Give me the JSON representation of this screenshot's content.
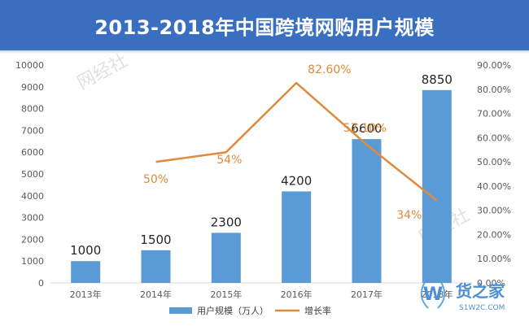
{
  "chart_data": {
    "type": "bar",
    "title": "2013-2018年中国跨境网购用户规模",
    "categories": [
      "2013年",
      "2014年",
      "2015年",
      "2016年",
      "2017年",
      "2018年"
    ],
    "series": [
      {
        "name": "用户规模（万人）",
        "type": "bar",
        "axis": "left",
        "values": [
          1000,
          1500,
          2300,
          4200,
          6600,
          8850
        ],
        "labels": [
          "1000",
          "1500",
          "2300",
          "4200",
          "6600",
          "8850"
        ]
      },
      {
        "name": "增长率",
        "type": "line",
        "axis": "right",
        "values": [
          null,
          50,
          54,
          82.6,
          57.1,
          34
        ],
        "labels": [
          "",
          "50%",
          "54%",
          "82.60%",
          "57.10%",
          "34%"
        ]
      }
    ],
    "yleft": {
      "min": 0,
      "max": 10000,
      "step": 1000,
      "ticks": [
        "0",
        "1000",
        "2000",
        "3000",
        "4000",
        "5000",
        "6000",
        "7000",
        "8000",
        "9000",
        "10000"
      ]
    },
    "yright": {
      "min": 0,
      "max": 90,
      "step": 10,
      "ticks": [
        "0.00%",
        "10.00%",
        "20.00%",
        "30.00%",
        "40.00%",
        "50.00%",
        "60.00%",
        "70.00%",
        "80.00%",
        "90.00%"
      ]
    },
    "grid": false,
    "legend": "bottom"
  },
  "colors": {
    "bar": "#5b9bd5",
    "line": "#e08a3c",
    "title_bg": "#3a6fc0",
    "axis": "#595959"
  },
  "watermark": {
    "brand": "网经社",
    "logo_text": "货之家",
    "logo_sub": "S1W2C.COM"
  }
}
